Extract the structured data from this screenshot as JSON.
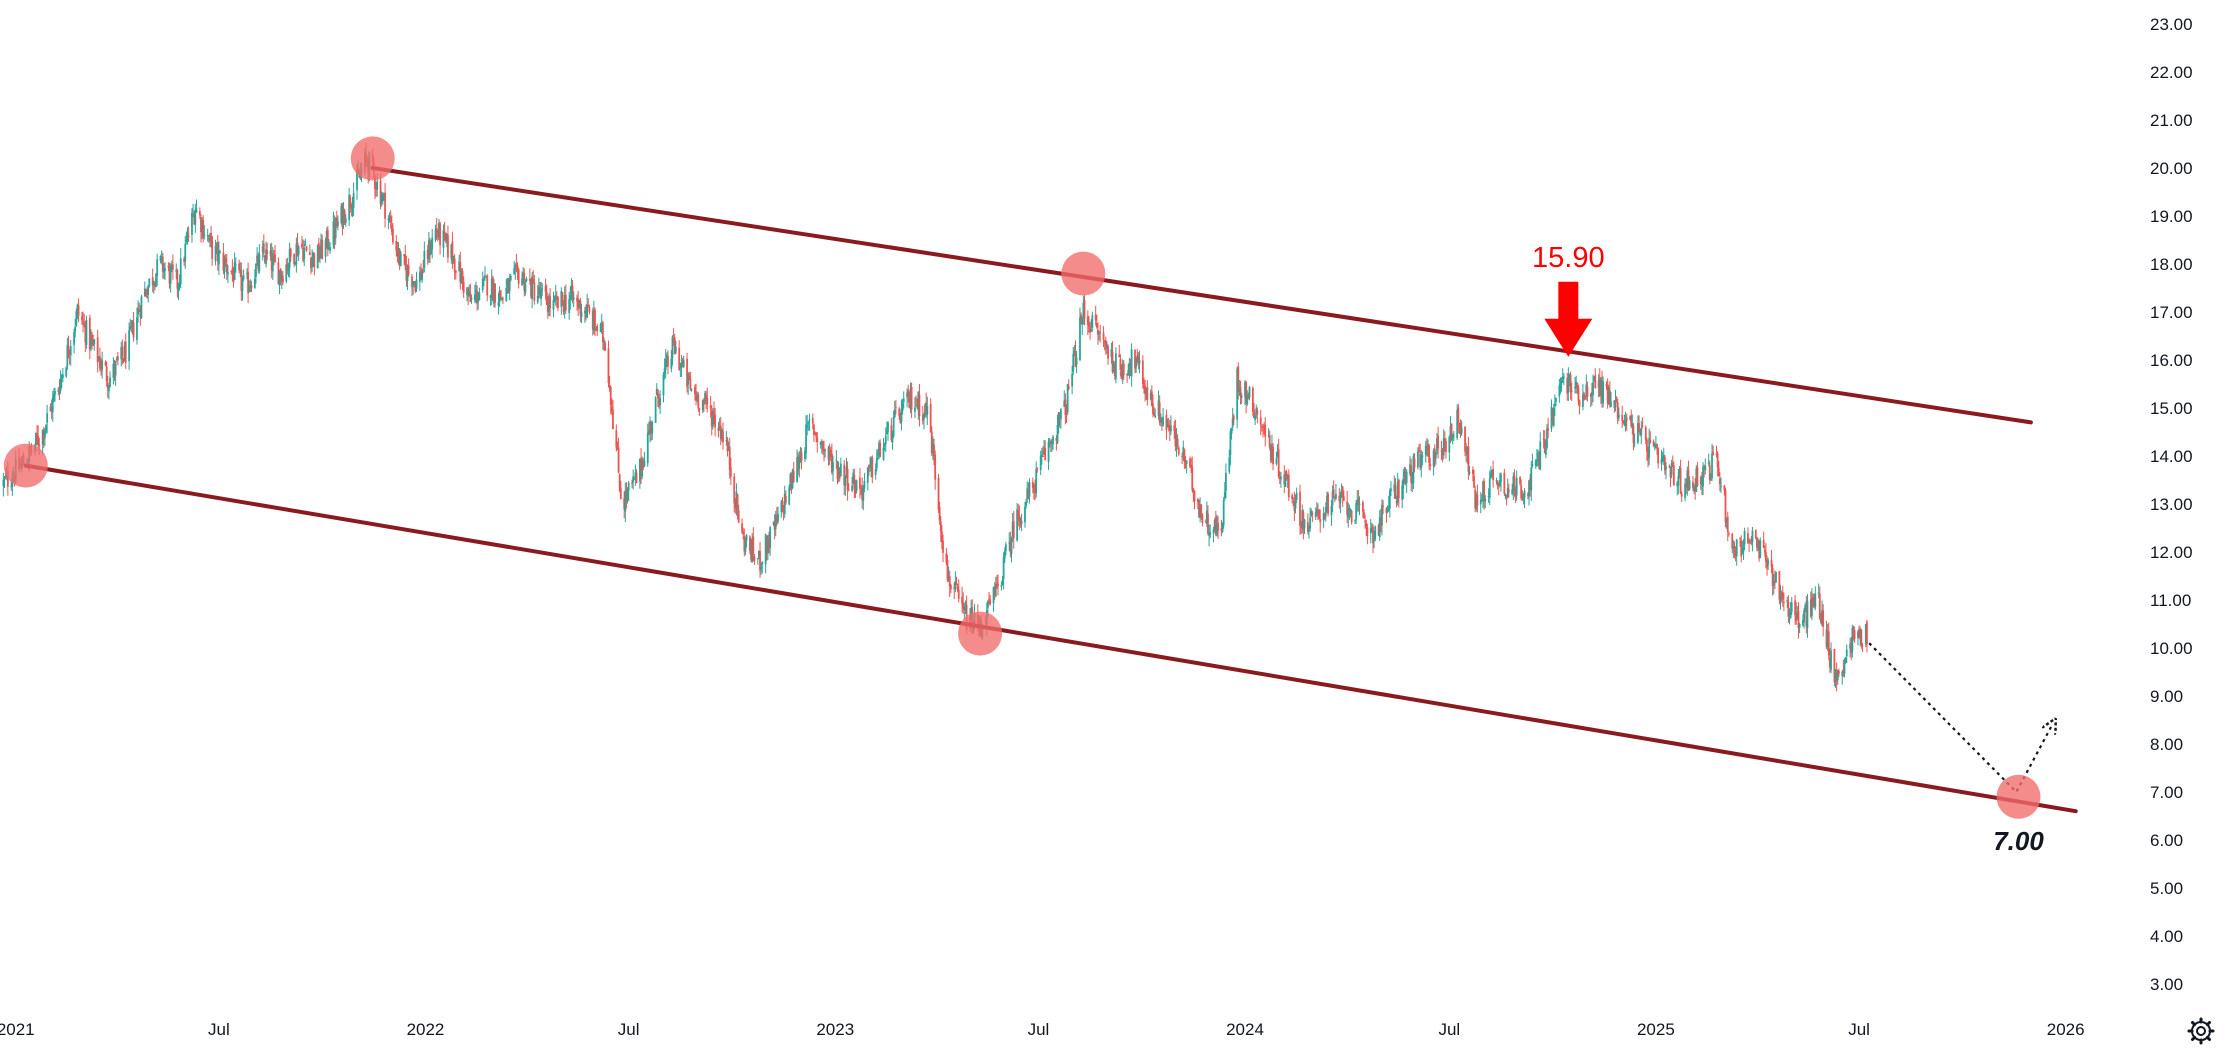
{
  "chart_data": {
    "type": "candlestick",
    "title": "",
    "xlabel": "",
    "ylabel": "",
    "ylim": [
      2.5,
      23.5
    ],
    "xlim": [
      "2020-12-18",
      "2026-03-10"
    ],
    "y_ticks": [
      "3.00",
      "4.00",
      "5.00",
      "6.00",
      "7.00",
      "8.00",
      "9.00",
      "10.00",
      "11.00",
      "12.00",
      "13.00",
      "14.00",
      "15.00",
      "16.00",
      "17.00",
      "18.00",
      "19.00",
      "20.00",
      "21.00",
      "22.00",
      "23.00"
    ],
    "x_ticks": [
      {
        "label": "2021",
        "date": "2021-01-01"
      },
      {
        "label": "Jul",
        "date": "2021-07-01"
      },
      {
        "label": "2022",
        "date": "2022-01-01"
      },
      {
        "label": "Jul",
        "date": "2022-07-01"
      },
      {
        "label": "2023",
        "date": "2023-01-01"
      },
      {
        "label": "Jul",
        "date": "2023-07-01"
      },
      {
        "label": "2024",
        "date": "2024-01-01"
      },
      {
        "label": "Jul",
        "date": "2024-07-01"
      },
      {
        "label": "2025",
        "date": "2025-01-01"
      },
      {
        "label": "Jul",
        "date": "2025-07-01"
      },
      {
        "label": "2026",
        "date": "2026-01-01"
      }
    ],
    "colors": {
      "up": "#26a69a",
      "down": "#ef5350",
      "channel": "#8b1a1f",
      "marker": "#f26b6b",
      "annotation": "#ff0000"
    },
    "price_path": [
      [
        "2020-12-20",
        13.4
      ],
      [
        "2021-01-10",
        13.9
      ],
      [
        "2021-01-25",
        14.5
      ],
      [
        "2021-02-10",
        15.6
      ],
      [
        "2021-02-25",
        17.0
      ],
      [
        "2021-03-10",
        16.3
      ],
      [
        "2021-03-25",
        15.6
      ],
      [
        "2021-04-10",
        16.2
      ],
      [
        "2021-04-25",
        17.4
      ],
      [
        "2021-05-10",
        18.0
      ],
      [
        "2021-05-25",
        17.6
      ],
      [
        "2021-06-10",
        19.2
      ],
      [
        "2021-06-25",
        18.3
      ],
      [
        "2021-07-10",
        17.9
      ],
      [
        "2021-07-25",
        17.5
      ],
      [
        "2021-08-10",
        18.2
      ],
      [
        "2021-08-25",
        17.8
      ],
      [
        "2021-09-10",
        18.4
      ],
      [
        "2021-09-25",
        18.1
      ],
      [
        "2021-10-10",
        18.6
      ],
      [
        "2021-10-25",
        19.3
      ],
      [
        "2021-11-10",
        20.2
      ],
      [
        "2021-11-25",
        19.3
      ],
      [
        "2021-12-10",
        18.0
      ],
      [
        "2021-12-25",
        17.6
      ],
      [
        "2022-01-10",
        18.7
      ],
      [
        "2022-01-25",
        18.2
      ],
      [
        "2022-02-10",
        17.2
      ],
      [
        "2022-02-25",
        17.6
      ],
      [
        "2022-03-10",
        17.3
      ],
      [
        "2022-03-25",
        17.8
      ],
      [
        "2022-04-10",
        17.4
      ],
      [
        "2022-04-25",
        17.1
      ],
      [
        "2022-05-10",
        17.3
      ],
      [
        "2022-05-25",
        17.0
      ],
      [
        "2022-06-10",
        16.4
      ],
      [
        "2022-06-25",
        13.0
      ],
      [
        "2022-07-10",
        13.6
      ],
      [
        "2022-07-25",
        15.1
      ],
      [
        "2022-08-10",
        16.3
      ],
      [
        "2022-08-25",
        15.4
      ],
      [
        "2022-09-10",
        15.0
      ],
      [
        "2022-09-25",
        14.4
      ],
      [
        "2022-10-10",
        12.3
      ],
      [
        "2022-10-25",
        11.8
      ],
      [
        "2022-11-10",
        12.6
      ],
      [
        "2022-11-25",
        13.6
      ],
      [
        "2022-12-10",
        14.7
      ],
      [
        "2022-12-25",
        14.0
      ],
      [
        "2023-01-10",
        13.6
      ],
      [
        "2023-01-25",
        13.3
      ],
      [
        "2023-02-10",
        14.1
      ],
      [
        "2023-02-25",
        14.8
      ],
      [
        "2023-03-10",
        15.2
      ],
      [
        "2023-03-25",
        14.9
      ],
      [
        "2023-04-10",
        11.6
      ],
      [
        "2023-04-25",
        10.7
      ],
      [
        "2023-05-10",
        10.4
      ],
      [
        "2023-05-25",
        11.2
      ],
      [
        "2023-06-10",
        12.6
      ],
      [
        "2023-06-25",
        13.3
      ],
      [
        "2023-07-10",
        14.2
      ],
      [
        "2023-07-25",
        15.0
      ],
      [
        "2023-08-10",
        17.0
      ],
      [
        "2023-08-25",
        16.5
      ],
      [
        "2023-09-10",
        15.8
      ],
      [
        "2023-09-25",
        16.0
      ],
      [
        "2023-10-10",
        15.1
      ],
      [
        "2023-10-25",
        14.6
      ],
      [
        "2023-11-10",
        13.8
      ],
      [
        "2023-11-25",
        12.7
      ],
      [
        "2023-12-10",
        12.4
      ],
      [
        "2023-12-25",
        15.6
      ],
      [
        "2024-01-10",
        15.0
      ],
      [
        "2024-01-25",
        14.1
      ],
      [
        "2024-02-10",
        13.3
      ],
      [
        "2024-02-25",
        12.5
      ],
      [
        "2024-03-10",
        12.9
      ],
      [
        "2024-03-25",
        13.1
      ],
      [
        "2024-04-10",
        12.8
      ],
      [
        "2024-04-25",
        12.4
      ],
      [
        "2024-05-10",
        13.1
      ],
      [
        "2024-05-25",
        13.6
      ],
      [
        "2024-06-10",
        14.0
      ],
      [
        "2024-06-25",
        14.2
      ],
      [
        "2024-07-10",
        14.8
      ],
      [
        "2024-07-25",
        13.0
      ],
      [
        "2024-08-10",
        13.6
      ],
      [
        "2024-08-25",
        13.3
      ],
      [
        "2024-09-10",
        13.4
      ],
      [
        "2024-09-25",
        14.4
      ],
      [
        "2024-10-10",
        15.6
      ],
      [
        "2024-10-25",
        15.3
      ],
      [
        "2024-11-10",
        15.5
      ],
      [
        "2024-11-25",
        15.1
      ],
      [
        "2024-12-10",
        14.6
      ],
      [
        "2024-12-25",
        14.2
      ],
      [
        "2025-01-10",
        13.7
      ],
      [
        "2025-01-25",
        13.4
      ],
      [
        "2025-02-10",
        13.6
      ],
      [
        "2025-02-25",
        13.9
      ],
      [
        "2025-03-10",
        12.0
      ],
      [
        "2025-03-25",
        12.3
      ],
      [
        "2025-04-10",
        11.8
      ],
      [
        "2025-04-25",
        11.0
      ],
      [
        "2025-05-10",
        10.5
      ],
      [
        "2025-05-25",
        11.1
      ],
      [
        "2025-06-10",
        9.3
      ],
      [
        "2025-06-25",
        10.2
      ],
      [
        "2025-07-08",
        10.3
      ]
    ],
    "channel_lines": [
      {
        "name": "upper-channel",
        "from": {
          "date": "2021-11-15",
          "value": 20.0
        },
        "to": {
          "date": "2025-12-01",
          "value": 14.7
        }
      },
      {
        "name": "lower-channel",
        "from": {
          "date": "2021-01-10",
          "value": 13.8
        },
        "to": {
          "date": "2026-01-10",
          "value": 6.6
        }
      }
    ],
    "markers": [
      {
        "date": "2021-01-10",
        "value": 13.8
      },
      {
        "date": "2021-11-15",
        "value": 20.2
      },
      {
        "date": "2023-05-10",
        "value": 10.3
      },
      {
        "date": "2023-08-10",
        "value": 17.8
      },
      {
        "date": "2025-11-20",
        "value": 6.9
      }
    ],
    "projection": [
      {
        "date": "2025-07-10",
        "value": 10.1
      },
      {
        "date": "2025-11-18",
        "value": 7.0
      },
      {
        "date": "2025-12-20",
        "value": 8.4
      }
    ],
    "annotations": [
      {
        "text": "15.90",
        "date": "2024-10-15",
        "value": 15.9,
        "kind": "arrow-down"
      },
      {
        "text": "7.00",
        "date": "2025-11-20",
        "value": 7.0,
        "kind": "target"
      }
    ],
    "settings_icon": "gear-icon"
  }
}
